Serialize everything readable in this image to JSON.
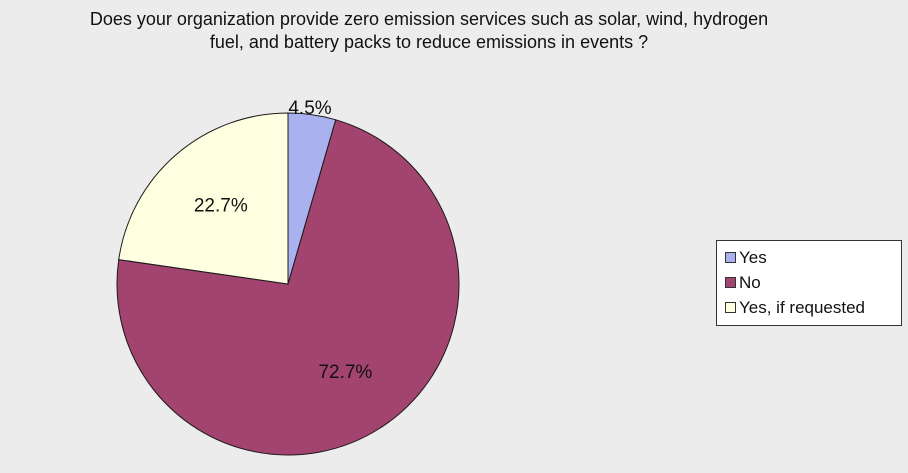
{
  "chart_data": {
    "type": "pie",
    "title_lines": [
      "Does your organization provide zero emission services such as solar, wind, hydrogen",
      "fuel, and battery packs to reduce emissions in events ?"
    ],
    "categories": [
      "Yes",
      "No",
      "Yes, if requested"
    ],
    "values": [
      4.5,
      72.7,
      22.7
    ],
    "labels": [
      "4.5%",
      "72.7%",
      "22.7%"
    ],
    "colors": [
      "#a9b1ee",
      "#a3436f",
      "#fefee0"
    ],
    "legend_position": "right",
    "background_color": "#ececec"
  }
}
